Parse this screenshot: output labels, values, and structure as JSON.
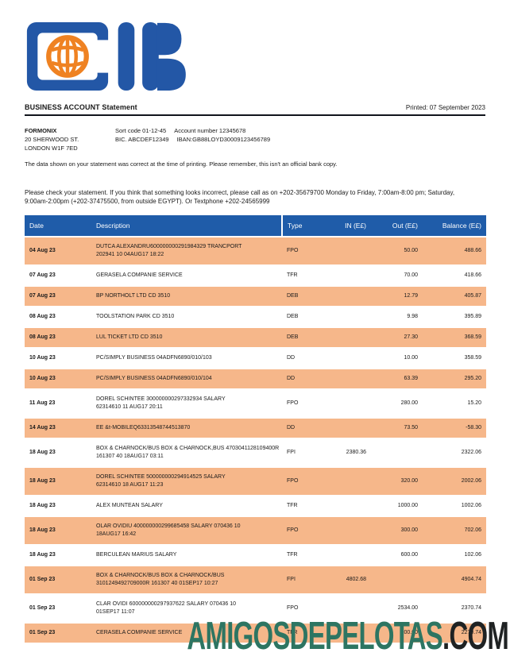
{
  "logo": {
    "bank": "CIB",
    "blue": "#2357a6",
    "orange": "#ef8222"
  },
  "header": {
    "title": "BUSINESS ACCOUNT Statement",
    "printed": "Printed: 07 September 2023"
  },
  "account": {
    "name": "FORMONIX",
    "address_line1": "20 SHERWOOD ST.",
    "address_line2": "LONDON W1F 7ED",
    "sort_code": "Sort code 01-12-45",
    "account_number": "Account number 12345678",
    "bic": "BIC. ABCDEF12349",
    "iban": "IBAN:GB88LOYD30009123456789"
  },
  "notices": {
    "disclaimer": "The data shown on your statement was correct at the time of printing. Please remember, this isn't an official bank copy.",
    "contact": "Please check your statement. If you think that something looks incorrect, please call as on +202-35679700 Monday to Friday, 7:00am-8:00 pm; Saturday, 9:00am-2:00pm (+202-37475500, from outside EGYPT). Or Textphone +202-24565999"
  },
  "table": {
    "columns": [
      "Date",
      "Description",
      "Type",
      "IN (E£)",
      "Out (E£)",
      "Balance (E£)"
    ],
    "header_color": "#1f5ca9",
    "stripe_color": "#f6b78a",
    "rows": [
      {
        "date": "04 Aug 23",
        "desc_lines": [
          "DUTCA ALEXANDRU600000000291984329 TRANCPORT",
          "202941 10 04AUG17 18:22"
        ],
        "type": "FPO",
        "in": "",
        "out": "50.00",
        "balance": "488.66"
      },
      {
        "date": "07 Aug 23",
        "desc_lines": [
          "GERASELA COMPANIE SERVICE"
        ],
        "type": "TFR",
        "in": "",
        "out": "70.00",
        "balance": "418.66"
      },
      {
        "date": "07 Aug 23",
        "desc_lines": [
          "BP NORTHOLT LTD CD 3510"
        ],
        "type": "DEB",
        "in": "",
        "out": "12.79",
        "balance": "405.87"
      },
      {
        "date": "08 Aug 23",
        "desc_lines": [
          "TOOLSTATION PARK CD 3510"
        ],
        "type": "DEB",
        "in": "",
        "out": "9.98",
        "balance": "395.89"
      },
      {
        "date": "08 Aug 23",
        "desc_lines": [
          "LUL TICKET LTD CD 3510"
        ],
        "type": "DEB",
        "in": "",
        "out": "27.30",
        "balance": "368.59"
      },
      {
        "date": "10 Aug 23",
        "desc_lines": [
          "PC/SIMPLY BUSINESS 04ADFN6890/010/103"
        ],
        "type": "DD",
        "in": "",
        "out": "10.00",
        "balance": "358.59"
      },
      {
        "date": "10 Aug 23",
        "desc_lines": [
          "PC/SIMPLY BUSINESS 04ADFN6890/010/104"
        ],
        "type": "DD",
        "in": "",
        "out": "63.39",
        "balance": "295.20"
      },
      {
        "date": "11 Aug 23",
        "desc_lines": [
          "DOREL SCHINTEE 300000000297332934 SALARY",
          "62314610 11 AUG17 20:11"
        ],
        "type": "FPO",
        "in": "",
        "out": "280.00",
        "balance": "15.20"
      },
      {
        "date": "14 Aug 23",
        "desc_lines": [
          "EE &t-MOBILEQ63313548744513870"
        ],
        "type": "DD",
        "in": "",
        "out": "73.50",
        "balance": "-58.30"
      },
      {
        "date": "18 Aug 23",
        "desc_lines": [
          "BOX & CHARNOCK/BUS BOX & CHARNOCK,BUS 4703041128109400R",
          "161307 40 18AUG17 03:11"
        ],
        "type": "FPI",
        "in": "2380.36",
        "out": "",
        "balance": "2322.06"
      },
      {
        "date": "18 Aug 23",
        "desc_lines": [
          "DOREL SCHINTEE 500000000294914525 SALARY",
          "62314610 18 AUG17 11:23"
        ],
        "type": "FPO",
        "in": "",
        "out": "320.00",
        "balance": "2002.06"
      },
      {
        "date": "18 Aug 23",
        "desc_lines": [
          "ALEX MUNTEAN SALARY"
        ],
        "type": "TFR",
        "in": "",
        "out": "1000.00",
        "balance": "1002.06"
      },
      {
        "date": "18 Aug 23",
        "desc_lines": [
          "OLAR OVIDIU 400000000299685458 SALARY 070436 10",
          "18AUG17 16:42"
        ],
        "type": "FPO",
        "in": "",
        "out": "300.00",
        "balance": "702.06"
      },
      {
        "date": "18 Aug 23",
        "desc_lines": [
          "BERCULEAN MARIUS SALARY"
        ],
        "type": "TFR",
        "in": "",
        "out": "600.00",
        "balance": "102.06"
      },
      {
        "date": "01 Sep 23",
        "desc_lines": [
          "BOX & CHARNOCK/BUS BOX & CHARNOCK/BUS",
          "3101249492709000R 161307 40 01SEP17 10:27"
        ],
        "type": "FPI",
        "in": "4802.68",
        "out": "",
        "balance": "4904.74"
      },
      {
        "date": "01 Sep 23",
        "desc_lines": [
          "CLAR OVIDI 600000000297937622 SALARY 070436 10",
          "01SEP17 11:07"
        ],
        "type": "FPO",
        "in": "",
        "out": "2534.00",
        "balance": "2370.74"
      },
      {
        "date": "01 Sep 23",
        "desc_lines": [
          "CERASELA COMPANIE SERVICE"
        ],
        "type": "TFR",
        "in": "",
        "out": "100.00",
        "balance": "2270.74"
      }
    ]
  },
  "watermark": {
    "name": "AMIGOSDEPELOTAS",
    "tld": ".COM"
  }
}
